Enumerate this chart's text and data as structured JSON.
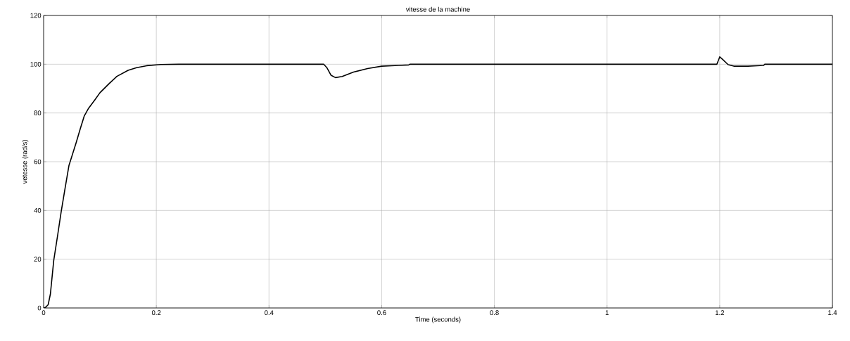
{
  "chart_data": {
    "type": "line",
    "title": "vitesse de la machine",
    "xlabel": "Time (seconds)",
    "ylabel": "vetesse (rad/s)",
    "x": [
      0,
      0.003,
      0.008,
      0.012,
      0.018,
      0.025,
      0.031,
      0.038,
      0.045,
      0.058,
      0.065,
      0.072,
      0.08,
      0.091,
      0.1,
      0.116,
      0.13,
      0.15,
      0.165,
      0.183,
      0.208,
      0.24,
      0.497,
      0.503,
      0.51,
      0.518,
      0.53,
      0.55,
      0.575,
      0.6,
      0.63,
      0.648,
      0.65,
      1.195,
      1.2,
      1.205,
      1.215,
      1.225,
      1.25,
      1.278,
      1.28,
      1.4
    ],
    "series": [
      {
        "color": "#000000",
        "values": [
          0,
          0.2,
          1.3,
          5.7,
          19.6,
          30,
          39.3,
          49,
          58.5,
          68,
          73.5,
          78.7,
          82,
          85.4,
          88.3,
          92,
          95,
          97.5,
          98.6,
          99.4,
          99.9,
          100,
          100,
          98.5,
          95.5,
          94.5,
          95,
          96.8,
          98.2,
          99.2,
          99.5,
          99.7,
          100,
          100,
          103,
          102,
          99.8,
          99.2,
          99.2,
          99.5,
          100,
          100
        ]
      }
    ],
    "xlim": [
      0,
      1.4
    ],
    "ylim": [
      0,
      120
    ],
    "xticks": [
      0,
      0.2,
      0.4,
      0.6,
      0.8,
      1,
      1.2,
      1.4
    ],
    "yticks": [
      0,
      20,
      40,
      60,
      80,
      100,
      120
    ],
    "grid": true,
    "marker": "none",
    "line_style": "solid"
  }
}
